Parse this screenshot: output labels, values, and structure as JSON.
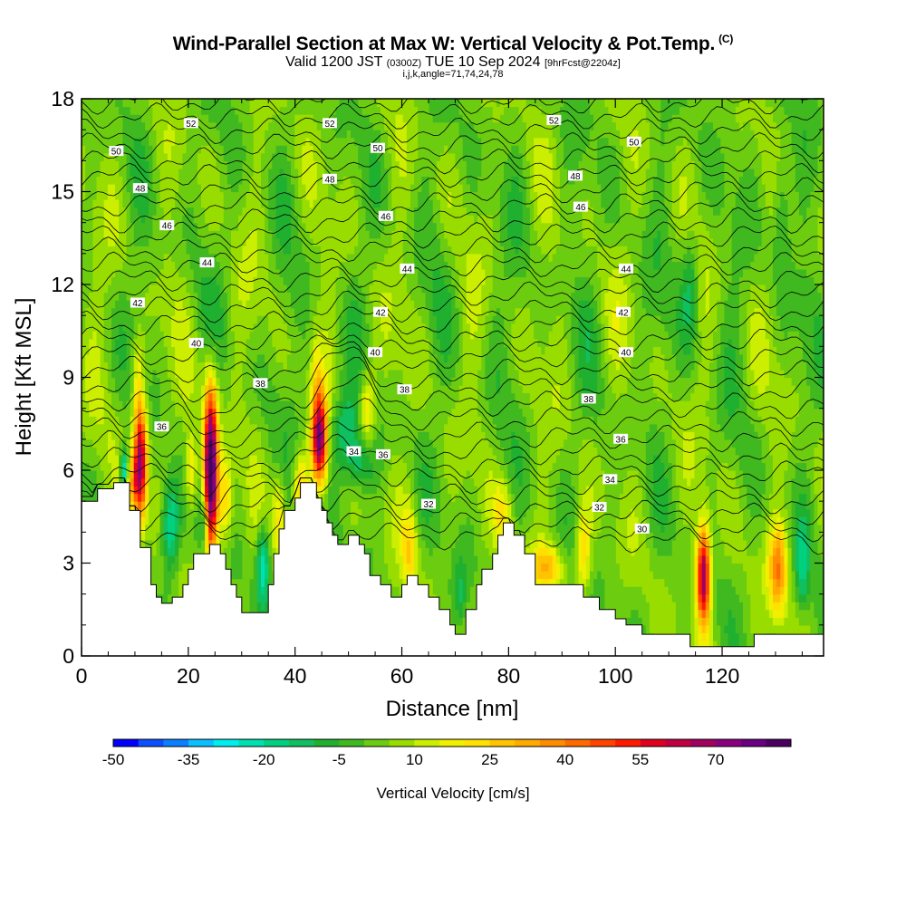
{
  "title": {
    "main": "Wind-Parallel Section at Max W: Vertical Velocity & Pot.Temp.",
    "mark": "(C)",
    "valid_prefix": "Valid 1200 JST",
    "valid_zulu": "(0300Z)",
    "valid_date": "TUE 10 Sep 2024",
    "forecast": "[9hrFcst@2204z]",
    "params": "i,j,k,angle=71,74,24,78"
  },
  "chart_data": {
    "type": "heatmap",
    "xlabel": "Distance [nm]",
    "ylabel": "Height [Kft MSL]",
    "xlim": [
      0,
      139
    ],
    "ylim": [
      0,
      18
    ],
    "x_ticks": [
      0,
      20,
      40,
      60,
      80,
      100,
      120
    ],
    "y_ticks": [
      0,
      3,
      6,
      9,
      12,
      15,
      18
    ],
    "x_tick_labels": [
      "0",
      "20",
      "40",
      "60",
      "80",
      "100",
      "120"
    ],
    "y_tick_labels": [
      "0",
      "3",
      "6",
      "9",
      "12",
      "15",
      "18"
    ],
    "colorbar": {
      "label": "Vertical Velocity [cm/s]",
      "min": -50,
      "max": 85,
      "step": 5,
      "tick_values": [
        -50,
        -35,
        -20,
        -5,
        10,
        25,
        40,
        55,
        70
      ],
      "tick_labels": [
        "-50",
        "-35",
        "-20",
        "-5",
        "10",
        "25",
        "40",
        "55",
        "70"
      ],
      "colors": [
        "#0000ff",
        "#0b4fff",
        "#0b7fff",
        "#0bbfff",
        "#00eeee",
        "#00e0b0",
        "#00d080",
        "#10c060",
        "#20b030",
        "#40b820",
        "#6ccc10",
        "#99dd00",
        "#ccee00",
        "#f0f000",
        "#ffe000",
        "#ffc400",
        "#ffaa00",
        "#ff8c00",
        "#ff6a00",
        "#ff4400",
        "#ff1a00",
        "#e00020",
        "#c00040",
        "#a00060",
        "#880080",
        "#6a0080",
        "#4a0060"
      ]
    },
    "terrain": [
      [
        0,
        5
      ],
      [
        3,
        5
      ],
      [
        3,
        5.4
      ],
      [
        6,
        5.4
      ],
      [
        6,
        5.6
      ],
      [
        9,
        5.6
      ],
      [
        9,
        4.7
      ],
      [
        11,
        4.7
      ],
      [
        11,
        3.5
      ],
      [
        13,
        3.5
      ],
      [
        13,
        2.3
      ],
      [
        14,
        2.3
      ],
      [
        14,
        1.9
      ],
      [
        15,
        1.9
      ],
      [
        15,
        1.7
      ],
      [
        17,
        1.7
      ],
      [
        17,
        1.9
      ],
      [
        19,
        1.9
      ],
      [
        19,
        2.3
      ],
      [
        20,
        2.3
      ],
      [
        20,
        2.8
      ],
      [
        21,
        2.8
      ],
      [
        21,
        3.3
      ],
      [
        24,
        3.3
      ],
      [
        24,
        3.6
      ],
      [
        26,
        3.6
      ],
      [
        26,
        3.3
      ],
      [
        27,
        3.3
      ],
      [
        27,
        2.8
      ],
      [
        28,
        2.8
      ],
      [
        28,
        2.3
      ],
      [
        29,
        2.3
      ],
      [
        29,
        1.9
      ],
      [
        30,
        1.9
      ],
      [
        30,
        1.4
      ],
      [
        35,
        1.4
      ],
      [
        35,
        2.3
      ],
      [
        36,
        2.3
      ],
      [
        36,
        3.3
      ],
      [
        37,
        3.3
      ],
      [
        37,
        4.1
      ],
      [
        38,
        4.1
      ],
      [
        38,
        4.7
      ],
      [
        40,
        4.7
      ],
      [
        40,
        5.1
      ],
      [
        41,
        5.1
      ],
      [
        41,
        5.6
      ],
      [
        44,
        5.6
      ],
      [
        44,
        5.1
      ],
      [
        45,
        5.1
      ],
      [
        45,
        4.7
      ],
      [
        46,
        4.7
      ],
      [
        46,
        4.3
      ],
      [
        47,
        4.3
      ],
      [
        47,
        3.9
      ],
      [
        48,
        3.9
      ],
      [
        48,
        3.6
      ],
      [
        50,
        3.6
      ],
      [
        50,
        3.9
      ],
      [
        52,
        3.9
      ],
      [
        52,
        3.6
      ],
      [
        53,
        3.6
      ],
      [
        53,
        3.3
      ],
      [
        54,
        3.3
      ],
      [
        54,
        2.6
      ],
      [
        56,
        2.6
      ],
      [
        56,
        2.3
      ],
      [
        58,
        2.3
      ],
      [
        58,
        1.9
      ],
      [
        60,
        1.9
      ],
      [
        60,
        2.3
      ],
      [
        61,
        2.3
      ],
      [
        61,
        2.6
      ],
      [
        63,
        2.6
      ],
      [
        63,
        2.3
      ],
      [
        65,
        2.3
      ],
      [
        65,
        1.9
      ],
      [
        67,
        1.9
      ],
      [
        67,
        1.5
      ],
      [
        69,
        1.5
      ],
      [
        69,
        1
      ],
      [
        70,
        1
      ],
      [
        70,
        0.7
      ],
      [
        72,
        0.7
      ],
      [
        72,
        1.5
      ],
      [
        74,
        1.5
      ],
      [
        74,
        2.3
      ],
      [
        75,
        2.3
      ],
      [
        75,
        2.8
      ],
      [
        77,
        2.8
      ],
      [
        77,
        3.3
      ],
      [
        78,
        3.3
      ],
      [
        78,
        3.9
      ],
      [
        79,
        3.9
      ],
      [
        79,
        4.3
      ],
      [
        81,
        4.3
      ],
      [
        81,
        3.9
      ],
      [
        83,
        3.9
      ],
      [
        83,
        3.3
      ],
      [
        85,
        3.3
      ],
      [
        85,
        2.3
      ],
      [
        94,
        2.3
      ],
      [
        94,
        1.9
      ],
      [
        97,
        1.9
      ],
      [
        97,
        1.5
      ],
      [
        100,
        1.5
      ],
      [
        100,
        1.2
      ],
      [
        102,
        1.2
      ],
      [
        102,
        1
      ],
      [
        105,
        1
      ],
      [
        105,
        0.7
      ],
      [
        114,
        0.7
      ],
      [
        114,
        0.3
      ],
      [
        126,
        0.3
      ],
      [
        126,
        0.7
      ],
      [
        139,
        0.7
      ]
    ],
    "isentropes": {
      "labeled_values": [
        "30",
        "32",
        "34",
        "36",
        "38",
        "40",
        "42",
        "44",
        "46",
        "48",
        "50",
        "52"
      ],
      "labels": [
        {
          "text": "52",
          "x": 20.5,
          "y": 17.2
        },
        {
          "text": "52",
          "x": 46.5,
          "y": 17.2
        },
        {
          "text": "52",
          "x": 88.5,
          "y": 17.3
        },
        {
          "text": "50",
          "x": 6.5,
          "y": 16.3
        },
        {
          "text": "50",
          "x": 55.5,
          "y": 16.4
        },
        {
          "text": "50",
          "x": 103.5,
          "y": 16.6
        },
        {
          "text": "48",
          "x": 11,
          "y": 15.1
        },
        {
          "text": "48",
          "x": 46.5,
          "y": 15.4
        },
        {
          "text": "48",
          "x": 92.5,
          "y": 15.5
        },
        {
          "text": "46",
          "x": 16,
          "y": 13.9
        },
        {
          "text": "46",
          "x": 57,
          "y": 14.2
        },
        {
          "text": "46",
          "x": 93.5,
          "y": 14.5
        },
        {
          "text": "44",
          "x": 23.5,
          "y": 12.7
        },
        {
          "text": "44",
          "x": 61,
          "y": 12.5
        },
        {
          "text": "44",
          "x": 102,
          "y": 12.5
        },
        {
          "text": "42",
          "x": 10.5,
          "y": 11.4
        },
        {
          "text": "42",
          "x": 56,
          "y": 11.1
        },
        {
          "text": "42",
          "x": 101.5,
          "y": 11.1
        },
        {
          "text": "40",
          "x": 21.5,
          "y": 10.1
        },
        {
          "text": "40",
          "x": 55,
          "y": 9.8
        },
        {
          "text": "40",
          "x": 102,
          "y": 9.8
        },
        {
          "text": "38",
          "x": 33.5,
          "y": 8.8
        },
        {
          "text": "38",
          "x": 60.5,
          "y": 8.6
        },
        {
          "text": "38",
          "x": 95,
          "y": 8.3
        },
        {
          "text": "36",
          "x": 15,
          "y": 7.4
        },
        {
          "text": "36",
          "x": 56.5,
          "y": 6.5
        },
        {
          "text": "36",
          "x": 101,
          "y": 7
        },
        {
          "text": "34",
          "x": 51,
          "y": 6.6
        },
        {
          "text": "34",
          "x": 99,
          "y": 5.7
        },
        {
          "text": "32",
          "x": 65,
          "y": 4.9
        },
        {
          "text": "32",
          "x": 97,
          "y": 4.8
        },
        {
          "text": "30",
          "x": 105,
          "y": 4.1
        }
      ]
    }
  }
}
